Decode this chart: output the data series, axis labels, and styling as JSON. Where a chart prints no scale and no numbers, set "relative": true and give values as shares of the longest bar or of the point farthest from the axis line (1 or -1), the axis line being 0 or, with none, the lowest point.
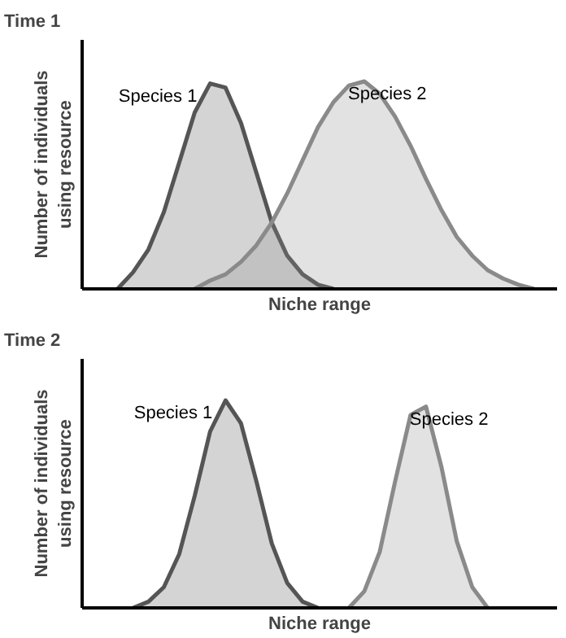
{
  "chart_data": [
    {
      "type": "area",
      "title": "Time 1",
      "xlabel": "Niche range",
      "ylabel": "Number of individuals\nusing resource",
      "relative": true,
      "categories": [
        null,
        null,
        null,
        null,
        null,
        null,
        null,
        null,
        null,
        null,
        null,
        null,
        null,
        null,
        null,
        null,
        null,
        null,
        null,
        null,
        null,
        null,
        null,
        null,
        null,
        null,
        null,
        null,
        null,
        null,
        null
      ],
      "series": [
        {
          "name": "Species 1",
          "color": "#555555",
          "values": [
            null,
            null,
            0,
            0.08,
            0.19,
            0.37,
            0.61,
            0.85,
            0.99,
            0.97,
            0.8,
            0.56,
            0.32,
            0.16,
            0.07,
            0.02,
            0,
            null,
            null,
            null,
            null,
            null,
            null,
            null,
            null,
            null,
            null,
            null,
            null,
            null,
            null
          ]
        },
        {
          "name": "Species 2",
          "color": "#8a8a8a",
          "values": [
            null,
            null,
            null,
            null,
            null,
            null,
            null,
            0,
            0.04,
            0.07,
            0.13,
            0.21,
            0.32,
            0.46,
            0.62,
            0.78,
            0.9,
            0.98,
            1,
            0.94,
            0.83,
            0.69,
            0.53,
            0.38,
            0.25,
            0.16,
            0.09,
            0.05,
            0.02,
            0,
            null
          ]
        }
      ]
    },
    {
      "type": "area",
      "title": "Time 2",
      "xlabel": "Niche range",
      "ylabel": "Number of individuals\nusing resource",
      "relative": true,
      "categories": [
        null,
        null,
        null,
        null,
        null,
        null,
        null,
        null,
        null,
        null,
        null,
        null,
        null,
        null,
        null,
        null,
        null,
        null,
        null,
        null,
        null,
        null,
        null,
        null,
        null,
        null,
        null,
        null,
        null,
        null,
        null
      ],
      "series": [
        {
          "name": "Species 1",
          "color": "#555555",
          "values": [
            null,
            null,
            null,
            0,
            0.03,
            0.1,
            0.26,
            0.54,
            0.85,
            1,
            0.89,
            0.61,
            0.31,
            0.12,
            0.03,
            0,
            null,
            null,
            null,
            null,
            null,
            null,
            null,
            null,
            null,
            null,
            null,
            null,
            null,
            null,
            null
          ]
        },
        {
          "name": "Species 2",
          "color": "#8a8a8a",
          "values": [
            null,
            null,
            null,
            null,
            null,
            null,
            null,
            null,
            null,
            null,
            null,
            null,
            null,
            null,
            null,
            null,
            null,
            0,
            0.08,
            0.27,
            0.61,
            0.93,
            0.97,
            0.68,
            0.32,
            0.1,
            0,
            null,
            null,
            null,
            null
          ]
        }
      ]
    }
  ]
}
